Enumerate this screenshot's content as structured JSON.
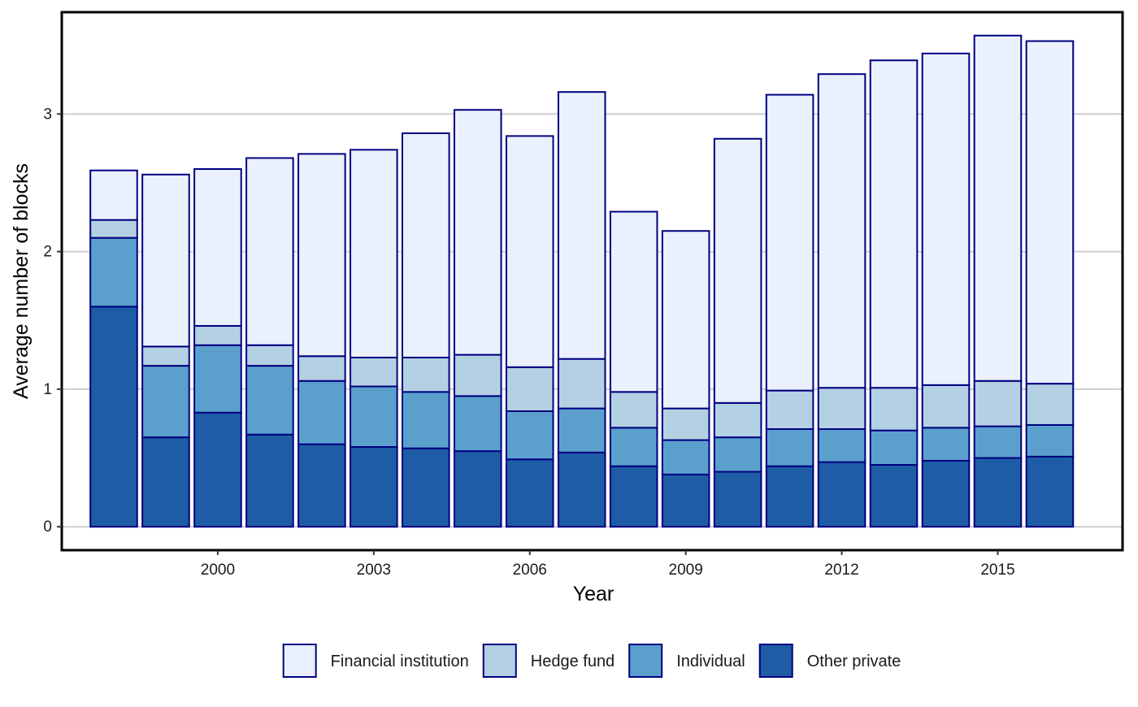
{
  "chart_data": {
    "type": "bar",
    "stacked": true,
    "xlabel": "Year",
    "ylabel": "Average number of blocks",
    "x": [
      1998,
      1999,
      2000,
      2001,
      2002,
      2003,
      2004,
      2005,
      2006,
      2007,
      2008,
      2009,
      2010,
      2011,
      2012,
      2013,
      2014,
      2015,
      2016
    ],
    "xticks": [
      2000,
      2003,
      2006,
      2009,
      2012,
      2015
    ],
    "yticks": [
      0,
      1,
      2,
      3
    ],
    "ylim": [
      -0.17,
      3.74
    ],
    "xlim": [
      1997.0,
      2017.4
    ],
    "grid": "horizontal",
    "legend_position": "bottom",
    "series": [
      {
        "name": "Other private",
        "color": "#1f5ca6",
        "values": [
          1.6,
          0.65,
          0.83,
          0.67,
          0.6,
          0.58,
          0.57,
          0.55,
          0.49,
          0.54,
          0.44,
          0.38,
          0.4,
          0.44,
          0.47,
          0.45,
          0.48,
          0.5,
          0.51
        ]
      },
      {
        "name": "Individual",
        "color": "#5ba0cd",
        "values": [
          0.5,
          0.52,
          0.49,
          0.5,
          0.46,
          0.44,
          0.41,
          0.4,
          0.35,
          0.32,
          0.28,
          0.25,
          0.25,
          0.27,
          0.24,
          0.25,
          0.24,
          0.23,
          0.23
        ]
      },
      {
        "name": "Hedge fund",
        "color": "#b4d0e3",
        "values": [
          0.13,
          0.14,
          0.14,
          0.15,
          0.18,
          0.21,
          0.25,
          0.3,
          0.32,
          0.36,
          0.26,
          0.23,
          0.25,
          0.28,
          0.3,
          0.31,
          0.31,
          0.33,
          0.3
        ]
      },
      {
        "name": "Financial institution",
        "color": "#eaf0fc",
        "values": [
          0.36,
          1.25,
          1.14,
          1.36,
          1.47,
          1.51,
          1.63,
          1.78,
          1.68,
          1.94,
          1.31,
          1.29,
          1.92,
          2.15,
          2.28,
          2.38,
          2.41,
          2.51,
          2.49
        ]
      }
    ],
    "legend_order": [
      "Financial institution",
      "Hedge fund",
      "Individual",
      "Other private"
    ],
    "bar_outline_color": "#000080"
  }
}
